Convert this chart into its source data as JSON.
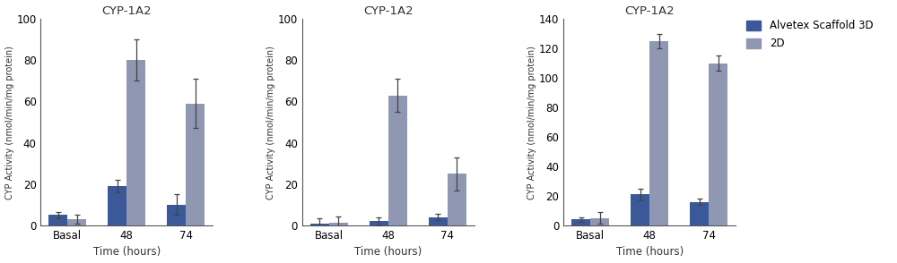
{
  "charts": [
    {
      "title": "CYP-1A2",
      "ylim": [
        0,
        100
      ],
      "yticks": [
        0,
        20,
        40,
        60,
        80,
        100
      ],
      "ylabel": "CYP Activity (nmol/min/mg protein)",
      "xlabel": "Time (hours)",
      "categories": [
        "Basal",
        "48",
        "74"
      ],
      "bar_3d": [
        5,
        19,
        10
      ],
      "bar_2d": [
        3,
        80,
        59
      ],
      "err_3d": [
        1.5,
        3,
        5
      ],
      "err_2d": [
        2,
        10,
        12
      ]
    },
    {
      "title": "CYP-1A2",
      "ylim": [
        0,
        100
      ],
      "yticks": [
        0,
        20,
        40,
        60,
        80,
        100
      ],
      "ylabel": "CYP Activity (nmol/min/mg protein)",
      "xlabel": "Time (hours)",
      "categories": [
        "Basal",
        "48",
        "74"
      ],
      "bar_3d": [
        1,
        2,
        4
      ],
      "bar_2d": [
        1.5,
        63,
        25
      ],
      "err_3d": [
        2.5,
        2,
        1.5
      ],
      "err_2d": [
        3,
        8,
        8
      ]
    },
    {
      "title": "CYP-1A2",
      "ylim": [
        0,
        140
      ],
      "yticks": [
        0,
        20,
        40,
        60,
        80,
        100,
        120,
        140
      ],
      "ylabel": "CYP Activity (nmol/min/mg protein)",
      "xlabel": "Time (hours)",
      "categories": [
        "Basal",
        "48",
        "74"
      ],
      "bar_3d": [
        4,
        21,
        16
      ],
      "bar_2d": [
        5,
        125,
        110
      ],
      "err_3d": [
        1.5,
        4,
        2
      ],
      "err_2d": [
        4,
        5,
        5
      ]
    }
  ],
  "color_3d": "#3B5998",
  "color_2d": "#8F97B2",
  "legend_labels": [
    "Alvetex Scaffold 3D",
    "2D"
  ],
  "bar_width": 0.32,
  "figsize": [
    10.0,
    2.94
  ],
  "dpi": 100,
  "bg_color": "#ffffff"
}
